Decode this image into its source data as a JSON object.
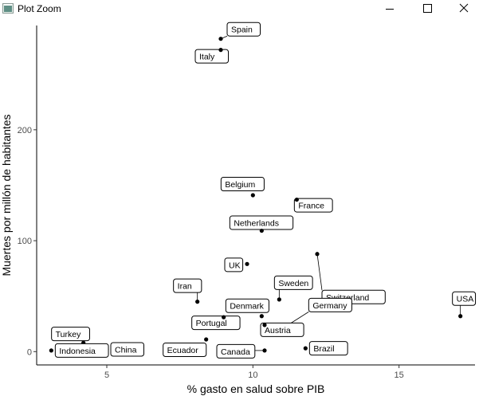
{
  "window": {
    "title": "Plot Zoom",
    "icons": [
      "app-icon",
      "minimize-icon",
      "maximize-icon",
      "close-icon"
    ]
  },
  "chart_data": {
    "type": "scatter",
    "title": "",
    "xlabel": "% gasto en salud sobre PIB",
    "ylabel": "Muertes por millón de habitantes",
    "xlim": [
      2.6,
      17.6
    ],
    "ylim": [
      -12,
      294
    ],
    "xticks": [
      5,
      10,
      15
    ],
    "yticks": [
      0,
      100,
      200
    ],
    "grid": false,
    "points": [
      {
        "label": "Spain",
        "x": 8.9,
        "y": 282
      },
      {
        "label": "Italy",
        "x": 8.9,
        "y": 272
      },
      {
        "label": "Belgium",
        "x": 10.0,
        "y": 141
      },
      {
        "label": "France",
        "x": 11.5,
        "y": 137
      },
      {
        "label": "Netherlands",
        "x": 10.3,
        "y": 109
      },
      {
        "label": "Switzerland",
        "x": 12.2,
        "y": 88
      },
      {
        "label": "UK",
        "x": 9.8,
        "y": 79
      },
      {
        "label": "Sweden",
        "x": 10.9,
        "y": 47
      },
      {
        "label": "Iran",
        "x": 8.1,
        "y": 45
      },
      {
        "label": "Denmark",
        "x": 10.3,
        "y": 32
      },
      {
        "label": "USA",
        "x": 17.1,
        "y": 32
      },
      {
        "label": "Portugal",
        "x": 9.0,
        "y": 31
      },
      {
        "label": "Germany",
        "x": 11.2,
        "y": 24
      },
      {
        "label": "Austria",
        "x": 10.4,
        "y": 24
      },
      {
        "label": "Ecuador",
        "x": 8.4,
        "y": 11
      },
      {
        "label": "Turkey",
        "x": 4.2,
        "y": 8
      },
      {
        "label": "Brazil",
        "x": 11.8,
        "y": 3
      },
      {
        "label": "China",
        "x": 5.0,
        "y": 2
      },
      {
        "label": "Indonesia",
        "x": 3.1,
        "y": 1
      },
      {
        "label": "Canada",
        "x": 10.4,
        "y": 1
      }
    ]
  }
}
